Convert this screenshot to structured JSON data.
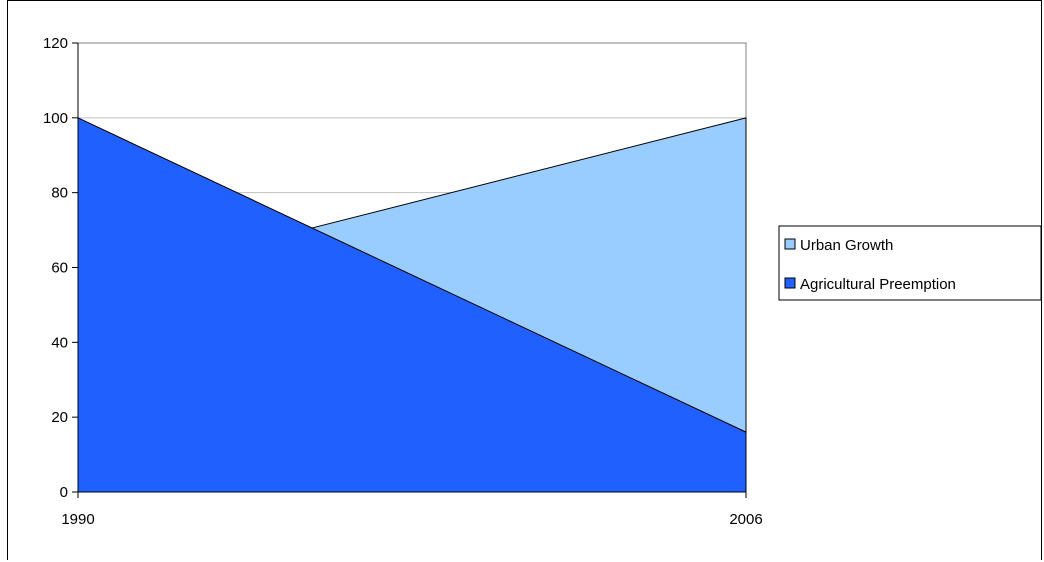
{
  "chart_data": {
    "type": "area",
    "title": "",
    "xlabel": "",
    "ylabel": "",
    "x": [
      "1990",
      "2006"
    ],
    "ylim": [
      0,
      120
    ],
    "yticks": [
      0,
      20,
      40,
      60,
      80,
      100,
      120
    ],
    "grid": "horizontal",
    "legend_position": "right",
    "series": [
      {
        "name": "Agricultural Preemption",
        "color": "#2060ff",
        "points": [
          {
            "x": 1990,
            "y": 100
          },
          {
            "x": 2006,
            "y": 16
          }
        ]
      },
      {
        "name": "Urban Growth",
        "color": "#99ccff",
        "points": [
          {
            "x": 1994.7,
            "y": 68
          },
          {
            "x": 2006,
            "y": 100
          }
        ]
      }
    ]
  }
}
